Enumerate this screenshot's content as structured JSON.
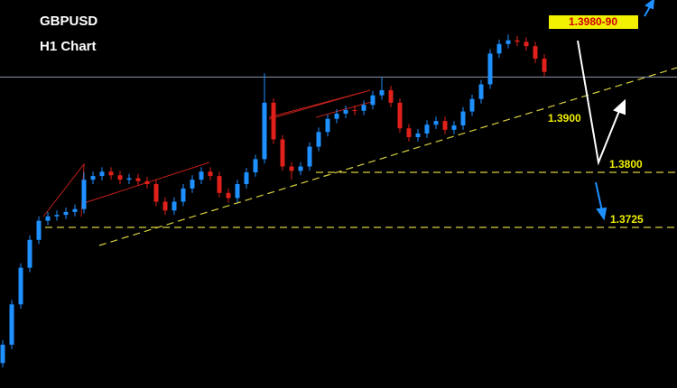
{
  "chart_data": {
    "type": "candlestick",
    "title": "GBPUSD",
    "subtitle": "H1 Chart",
    "ylim": [
      1.3506,
      1.4035
    ],
    "up_color": "#1e90ff",
    "down_color": "#e0201a",
    "reference_line": 1.393,
    "levels": [
      {
        "value": 1.38,
        "label": "1.3800"
      },
      {
        "value": 1.3725,
        "label": "1.3725"
      }
    ],
    "trendline_label": "1.3900",
    "target_label": "1.3980-90",
    "ohlc": [
      [
        1.354,
        1.3571,
        1.3534,
        1.3565
      ],
      [
        1.3565,
        1.3626,
        1.3559,
        1.362
      ],
      [
        1.362,
        1.3676,
        1.3614,
        1.367
      ],
      [
        1.367,
        1.3714,
        1.3664,
        1.3708
      ],
      [
        1.3708,
        1.374,
        1.3702,
        1.3734
      ],
      [
        1.3734,
        1.3746,
        1.3728,
        1.374
      ],
      [
        1.374,
        1.3748,
        1.3734,
        1.3742
      ],
      [
        1.3742,
        1.3752,
        1.3736,
        1.3746
      ],
      [
        1.3746,
        1.3756,
        1.374,
        1.375
      ],
      [
        1.375,
        1.38,
        1.3744,
        1.379
      ],
      [
        1.379,
        1.3801,
        1.3784,
        1.3795
      ],
      [
        1.3795,
        1.3807,
        1.3789,
        1.3801
      ],
      [
        1.3801,
        1.3807,
        1.379,
        1.3796
      ],
      [
        1.3796,
        1.3802,
        1.3784,
        1.379
      ],
      [
        1.379,
        1.3798,
        1.3784,
        1.3792
      ],
      [
        1.3792,
        1.3798,
        1.3782,
        1.3788
      ],
      [
        1.3788,
        1.3794,
        1.3778,
        1.3784
      ],
      [
        1.3784,
        1.379,
        1.3754,
        1.376
      ],
      [
        1.376,
        1.3766,
        1.3742,
        1.3748
      ],
      [
        1.3748,
        1.3766,
        1.3742,
        1.376
      ],
      [
        1.376,
        1.3784,
        1.3754,
        1.3778
      ],
      [
        1.3778,
        1.3796,
        1.3772,
        1.379
      ],
      [
        1.379,
        1.3807,
        1.3784,
        1.3801
      ],
      [
        1.3801,
        1.3807,
        1.3789,
        1.3795
      ],
      [
        1.3795,
        1.3801,
        1.3766,
        1.3772
      ],
      [
        1.3772,
        1.3778,
        1.3759,
        1.3765
      ],
      [
        1.3765,
        1.379,
        1.3759,
        1.3784
      ],
      [
        1.3784,
        1.3806,
        1.3778,
        1.38
      ],
      [
        1.38,
        1.3824,
        1.3794,
        1.3818
      ],
      [
        1.3818,
        1.3935,
        1.3812,
        1.3895
      ],
      [
        1.3895,
        1.3901,
        1.3839,
        1.3845
      ],
      [
        1.3845,
        1.3851,
        1.3802,
        1.3808
      ],
      [
        1.3808,
        1.3814,
        1.379,
        1.3802
      ],
      [
        1.3802,
        1.3814,
        1.3796,
        1.3808
      ],
      [
        1.3808,
        1.3841,
        1.3802,
        1.3835
      ],
      [
        1.3835,
        1.3861,
        1.3829,
        1.3855
      ],
      [
        1.3855,
        1.3879,
        1.3849,
        1.3873
      ],
      [
        1.3873,
        1.3886,
        1.3867,
        1.388
      ],
      [
        1.388,
        1.3891,
        1.3874,
        1.3885
      ],
      [
        1.3885,
        1.3891,
        1.3878,
        1.3884
      ],
      [
        1.3884,
        1.3898,
        1.3878,
        1.3892
      ],
      [
        1.3892,
        1.3911,
        1.3886,
        1.3905
      ],
      [
        1.3905,
        1.393,
        1.3899,
        1.3912
      ],
      [
        1.3912,
        1.3918,
        1.3889,
        1.3895
      ],
      [
        1.3895,
        1.3901,
        1.3854,
        1.386
      ],
      [
        1.386,
        1.3866,
        1.3842,
        1.3848
      ],
      [
        1.3848,
        1.3859,
        1.3842,
        1.3853
      ],
      [
        1.3853,
        1.3871,
        1.3847,
        1.3865
      ],
      [
        1.3865,
        1.3876,
        1.3859,
        1.387
      ],
      [
        1.387,
        1.3876,
        1.3852,
        1.3858
      ],
      [
        1.3858,
        1.387,
        1.3852,
        1.3864
      ],
      [
        1.3864,
        1.3889,
        1.3858,
        1.3883
      ],
      [
        1.3883,
        1.3906,
        1.3877,
        1.39
      ],
      [
        1.39,
        1.3926,
        1.3894,
        1.392
      ],
      [
        1.392,
        1.3968,
        1.3914,
        1.3962
      ],
      [
        1.3962,
        1.3981,
        1.3956,
        1.3975
      ],
      [
        1.3975,
        1.3988,
        1.3969,
        1.398
      ],
      [
        1.398,
        1.3986,
        1.3972,
        1.3978
      ],
      [
        1.3978,
        1.3984,
        1.3966,
        1.3972
      ],
      [
        1.3972,
        1.3978,
        1.3949,
        1.3955
      ],
      [
        1.3955,
        1.3961,
        1.3931,
        1.3937
      ]
    ]
  }
}
